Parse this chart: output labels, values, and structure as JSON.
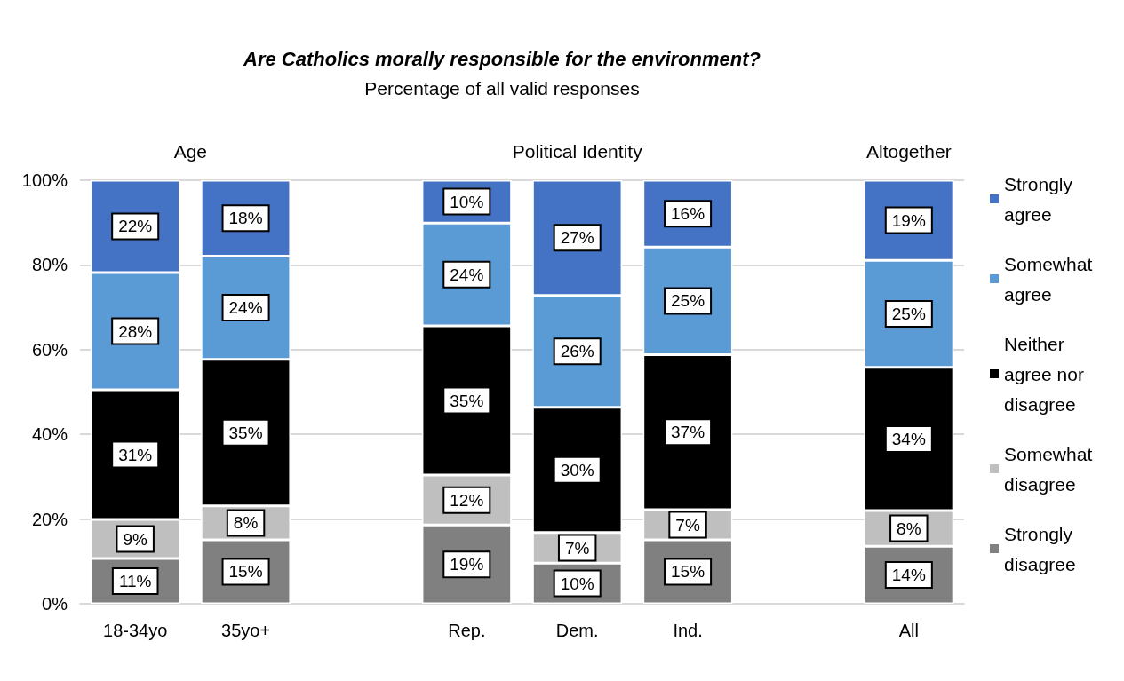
{
  "chart_data": {
    "type": "bar",
    "title": "Are Catholics morally responsible for the environment?",
    "subtitle": "Percentage of all valid responses",
    "categories": [
      "18-34yo",
      "35yo+",
      null,
      "Rep.",
      "Dem.",
      "Ind.",
      null,
      "All"
    ],
    "annotations": [
      "Age",
      "Political Identity",
      "Altogether"
    ],
    "stacked": true,
    "series": [
      {
        "name": "Strongly disagree",
        "color": "#808080",
        "values": [
          10.7,
          15.1,
          null,
          18.6,
          9.6,
          15.1,
          null,
          13.6
        ],
        "value_labels": [
          "11%",
          "15%",
          null,
          "19%",
          "10%",
          "15%",
          null,
          "14%"
        ]
      },
      {
        "name": "Somewhat disagree",
        "color": "#bfbfbf",
        "values": [
          9.2,
          8.0,
          null,
          11.8,
          7.2,
          7.1,
          null,
          8.4
        ],
        "value_labels": [
          "9%",
          "8%",
          null,
          "12%",
          "7%",
          "7%",
          null,
          "8%"
        ]
      },
      {
        "name": "Neither agree nor disagree",
        "color": "#000000",
        "values": [
          30.6,
          34.6,
          null,
          35.2,
          29.6,
          36.6,
          null,
          33.8
        ],
        "value_labels": [
          "31%",
          "35%",
          null,
          "35%",
          "30%",
          "37%",
          null,
          "34%"
        ]
      },
      {
        "name": "Somewhat agree",
        "color": "#5b9bd5",
        "values": [
          27.7,
          24.4,
          null,
          24.3,
          26.4,
          25.4,
          null,
          25.3
        ],
        "value_labels": [
          "28%",
          "24%",
          null,
          "24%",
          "26%",
          "25%",
          null,
          "25%"
        ]
      },
      {
        "name": "Strongly agree",
        "color": "#4472c4",
        "values": [
          21.8,
          17.9,
          null,
          10.1,
          27.2,
          15.8,
          null,
          18.9
        ],
        "value_labels": [
          "22%",
          "18%",
          null,
          "10%",
          "27%",
          "16%",
          null,
          "19%"
        ]
      }
    ],
    "ylim": [
      0,
      100
    ],
    "yticks": [
      {
        "value": 0,
        "label": "0%"
      },
      {
        "value": 20,
        "label": "20%"
      },
      {
        "value": 40,
        "label": "40%"
      },
      {
        "value": 60,
        "label": "60%"
      },
      {
        "value": 80,
        "label": "80%"
      },
      {
        "value": 100,
        "label": "100%"
      }
    ],
    "grid": "y",
    "legend": "right"
  }
}
